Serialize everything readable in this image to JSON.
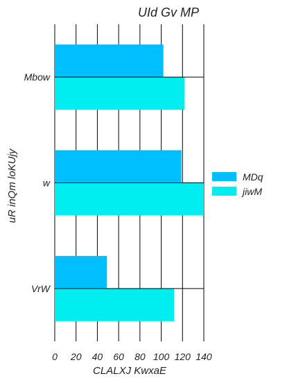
{
  "chart_data": {
    "type": "bar",
    "orientation": "horizontal",
    "title": "UId  Gv  MP",
    "xlabel": "CLALXJ KwxaE",
    "ylabel": "uR  inQm loKUjy",
    "categories": [
      "Mbow",
      "w",
      "VrW"
    ],
    "series": [
      {
        "name": "MDq",
        "color": "#00bfff",
        "values": [
          102,
          119,
          49
        ]
      },
      {
        "name": "jiwM",
        "color": "#00eef0",
        "values": [
          122,
          140,
          112
        ]
      }
    ],
    "xlim": [
      0,
      140
    ],
    "xticks": [
      0,
      20,
      40,
      60,
      80,
      100,
      120,
      140
    ],
    "grid": true,
    "legend": "right"
  }
}
